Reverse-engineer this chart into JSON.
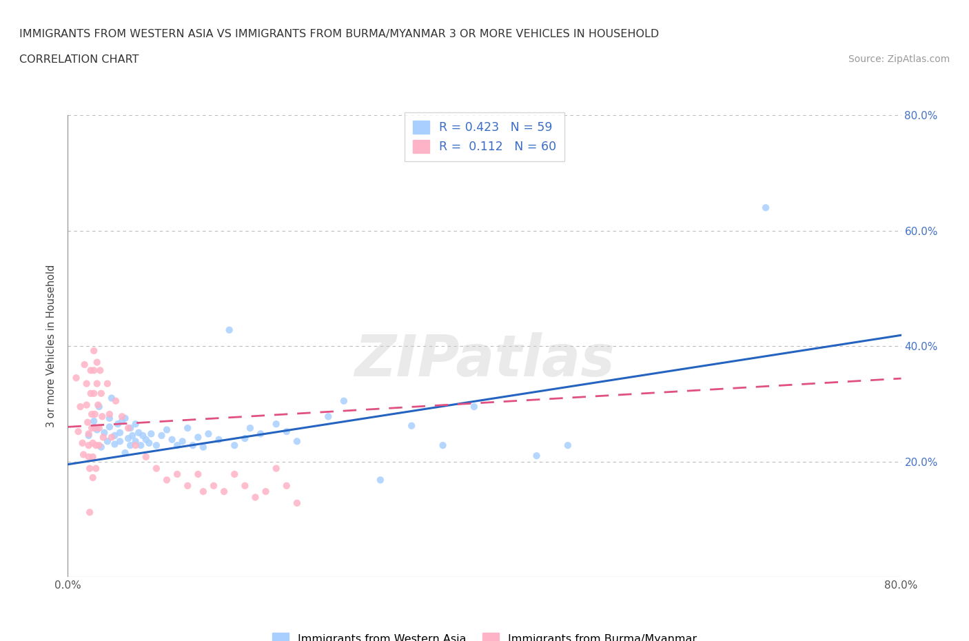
{
  "title": "IMMIGRANTS FROM WESTERN ASIA VS IMMIGRANTS FROM BURMA/MYANMAR 3 OR MORE VEHICLES IN HOUSEHOLD",
  "subtitle": "CORRELATION CHART",
  "source": "Source: ZipAtlas.com",
  "watermark": "ZIPatlas",
  "ylabel": "3 or more Vehicles in Household",
  "xmin": 0.0,
  "xmax": 0.8,
  "ymin": 0.0,
  "ymax": 0.8,
  "blue_color": "#A8CFFF",
  "pink_color": "#FFB3C6",
  "blue_line_color": "#2563C0",
  "pink_line_color": "#E05080",
  "R_blue": 0.423,
  "N_blue": 59,
  "R_pink": 0.112,
  "N_pink": 60,
  "legend_label_blue": "Immigrants from Western Asia",
  "legend_label_pink": "Immigrants from Burma/Myanmar",
  "blue_scatter": [
    [
      0.02,
      0.245
    ],
    [
      0.025,
      0.27
    ],
    [
      0.028,
      0.255
    ],
    [
      0.03,
      0.295
    ],
    [
      0.032,
      0.225
    ],
    [
      0.035,
      0.25
    ],
    [
      0.038,
      0.235
    ],
    [
      0.04,
      0.26
    ],
    [
      0.04,
      0.275
    ],
    [
      0.042,
      0.31
    ],
    [
      0.045,
      0.23
    ],
    [
      0.045,
      0.245
    ],
    [
      0.048,
      0.265
    ],
    [
      0.05,
      0.235
    ],
    [
      0.05,
      0.25
    ],
    [
      0.052,
      0.27
    ],
    [
      0.055,
      0.275
    ],
    [
      0.055,
      0.215
    ],
    [
      0.058,
      0.24
    ],
    [
      0.06,
      0.258
    ],
    [
      0.06,
      0.228
    ],
    [
      0.062,
      0.245
    ],
    [
      0.065,
      0.265
    ],
    [
      0.065,
      0.235
    ],
    [
      0.068,
      0.25
    ],
    [
      0.07,
      0.228
    ],
    [
      0.072,
      0.245
    ],
    [
      0.075,
      0.238
    ],
    [
      0.078,
      0.232
    ],
    [
      0.08,
      0.248
    ],
    [
      0.085,
      0.228
    ],
    [
      0.09,
      0.245
    ],
    [
      0.095,
      0.255
    ],
    [
      0.1,
      0.238
    ],
    [
      0.105,
      0.228
    ],
    [
      0.11,
      0.235
    ],
    [
      0.115,
      0.258
    ],
    [
      0.12,
      0.228
    ],
    [
      0.125,
      0.242
    ],
    [
      0.13,
      0.225
    ],
    [
      0.135,
      0.248
    ],
    [
      0.145,
      0.238
    ],
    [
      0.155,
      0.428
    ],
    [
      0.16,
      0.228
    ],
    [
      0.17,
      0.24
    ],
    [
      0.175,
      0.258
    ],
    [
      0.185,
      0.248
    ],
    [
      0.2,
      0.265
    ],
    [
      0.21,
      0.252
    ],
    [
      0.22,
      0.235
    ],
    [
      0.25,
      0.278
    ],
    [
      0.265,
      0.305
    ],
    [
      0.3,
      0.168
    ],
    [
      0.33,
      0.262
    ],
    [
      0.36,
      0.228
    ],
    [
      0.39,
      0.295
    ],
    [
      0.45,
      0.21
    ],
    [
      0.48,
      0.228
    ],
    [
      0.67,
      0.64
    ]
  ],
  "pink_scatter": [
    [
      0.008,
      0.345
    ],
    [
      0.01,
      0.252
    ],
    [
      0.012,
      0.295
    ],
    [
      0.014,
      0.232
    ],
    [
      0.015,
      0.212
    ],
    [
      0.016,
      0.368
    ],
    [
      0.018,
      0.335
    ],
    [
      0.018,
      0.298
    ],
    [
      0.019,
      0.268
    ],
    [
      0.02,
      0.248
    ],
    [
      0.02,
      0.228
    ],
    [
      0.02,
      0.208
    ],
    [
      0.021,
      0.188
    ],
    [
      0.021,
      0.112
    ],
    [
      0.022,
      0.358
    ],
    [
      0.022,
      0.318
    ],
    [
      0.023,
      0.282
    ],
    [
      0.023,
      0.258
    ],
    [
      0.024,
      0.232
    ],
    [
      0.024,
      0.208
    ],
    [
      0.024,
      0.172
    ],
    [
      0.025,
      0.392
    ],
    [
      0.025,
      0.358
    ],
    [
      0.025,
      0.318
    ],
    [
      0.026,
      0.282
    ],
    [
      0.026,
      0.258
    ],
    [
      0.027,
      0.228
    ],
    [
      0.027,
      0.188
    ],
    [
      0.028,
      0.372
    ],
    [
      0.028,
      0.335
    ],
    [
      0.029,
      0.298
    ],
    [
      0.03,
      0.258
    ],
    [
      0.03,
      0.228
    ],
    [
      0.031,
      0.358
    ],
    [
      0.032,
      0.318
    ],
    [
      0.033,
      0.278
    ],
    [
      0.034,
      0.242
    ],
    [
      0.038,
      0.335
    ],
    [
      0.04,
      0.282
    ],
    [
      0.042,
      0.242
    ],
    [
      0.046,
      0.305
    ],
    [
      0.052,
      0.278
    ],
    [
      0.058,
      0.258
    ],
    [
      0.065,
      0.228
    ],
    [
      0.075,
      0.208
    ],
    [
      0.085,
      0.188
    ],
    [
      0.095,
      0.168
    ],
    [
      0.105,
      0.178
    ],
    [
      0.115,
      0.158
    ],
    [
      0.125,
      0.178
    ],
    [
      0.13,
      0.148
    ],
    [
      0.14,
      0.158
    ],
    [
      0.15,
      0.148
    ],
    [
      0.16,
      0.178
    ],
    [
      0.17,
      0.158
    ],
    [
      0.18,
      0.138
    ],
    [
      0.19,
      0.148
    ],
    [
      0.2,
      0.188
    ],
    [
      0.21,
      0.158
    ],
    [
      0.22,
      0.128
    ]
  ],
  "blue_line_intercept": 0.195,
  "blue_line_slope": 0.28,
  "pink_line_intercept": 0.26,
  "pink_line_slope": 0.105,
  "grid_lines": [
    0.2,
    0.4,
    0.6,
    0.8
  ],
  "ytick_vals": [
    0.0,
    0.2,
    0.4,
    0.6,
    0.8
  ],
  "ytick_labels_right": [
    "",
    "20.0%",
    "40.0%",
    "60.0%",
    "80.0%"
  ],
  "xtick_vals": [
    0.0,
    0.1,
    0.2,
    0.3,
    0.4,
    0.5,
    0.6,
    0.7,
    0.8
  ]
}
